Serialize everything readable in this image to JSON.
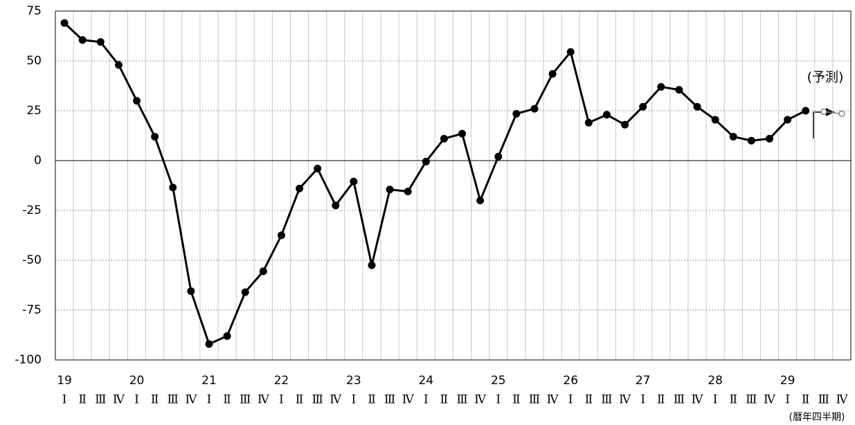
{
  "chart_data": {
    "type": "line",
    "categories": [
      "Ⅰ",
      "Ⅱ",
      "Ⅲ",
      "Ⅳ",
      "Ⅰ",
      "Ⅱ",
      "Ⅲ",
      "Ⅳ",
      "Ⅰ",
      "Ⅱ",
      "Ⅲ",
      "Ⅳ",
      "Ⅰ",
      "Ⅱ",
      "Ⅲ",
      "Ⅳ",
      "Ⅰ",
      "Ⅱ",
      "Ⅲ",
      "Ⅳ",
      "Ⅰ",
      "Ⅱ",
      "Ⅲ",
      "Ⅳ",
      "Ⅰ",
      "Ⅱ",
      "Ⅲ",
      "Ⅳ",
      "Ⅰ",
      "Ⅱ",
      "Ⅲ",
      "Ⅳ",
      "Ⅰ",
      "Ⅱ",
      "Ⅲ",
      "Ⅳ",
      "Ⅰ",
      "Ⅱ",
      "Ⅲ",
      "Ⅳ",
      "Ⅰ",
      "Ⅱ",
      "Ⅲ",
      "Ⅳ"
    ],
    "year_labels": [
      "19",
      "20",
      "21",
      "22",
      "23",
      "24",
      "25",
      "26",
      "27",
      "28",
      "29"
    ],
    "x_unit_label": "(暦年四半期)",
    "annotation": "(予測)",
    "series": [
      {
        "color": "#000000",
        "values": [
          69,
          60.5,
          59.5,
          48,
          30,
          12,
          -13.5,
          -65.5,
          -92,
          -88,
          -66,
          -55.5,
          -37.5,
          -14,
          -4,
          -22.5,
          -10.5,
          -52.5,
          -14.5,
          -15.5,
          -0.5,
          11,
          13.5,
          -20,
          2,
          23.5,
          26,
          43.5,
          54.5,
          19,
          23,
          18,
          27,
          37,
          35.5,
          27,
          20.5,
          12,
          10,
          11,
          20.5,
          25,
          null,
          null
        ]
      },
      {
        "color": "#808080",
        "values": [
          null,
          null,
          null,
          null,
          null,
          null,
          null,
          null,
          null,
          null,
          null,
          null,
          null,
          null,
          null,
          null,
          null,
          null,
          null,
          null,
          null,
          null,
          null,
          null,
          null,
          null,
          null,
          null,
          null,
          null,
          null,
          null,
          null,
          null,
          null,
          null,
          null,
          null,
          null,
          null,
          null,
          null,
          24.5,
          23.5
        ]
      }
    ],
    "ylim": [
      -100,
      75
    ],
    "yticks": [
      75,
      50,
      25,
      0,
      -25,
      -50,
      -75,
      -100
    ],
    "grid": true
  }
}
